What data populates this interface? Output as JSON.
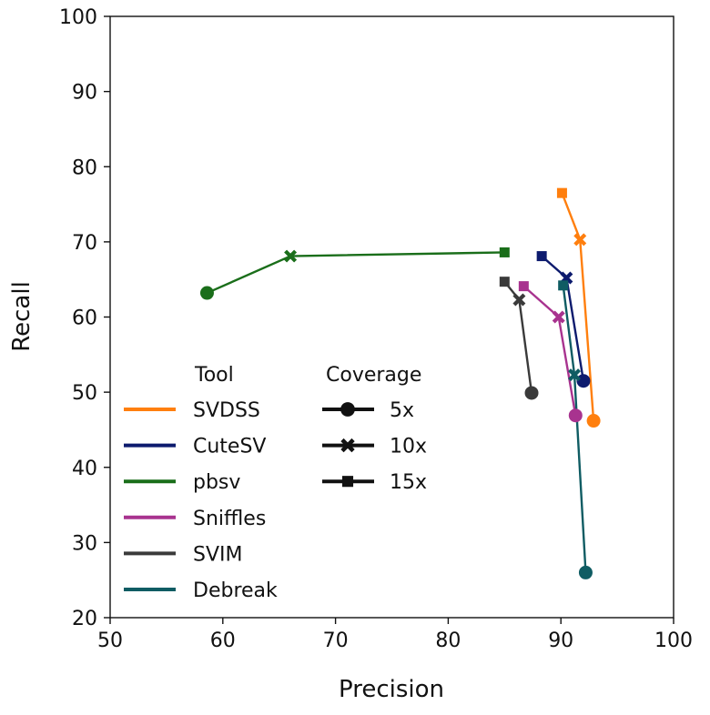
{
  "chart_data": {
    "type": "scatter",
    "title": "",
    "xlabel": "Precision",
    "ylabel": "Recall",
    "xlim": [
      50,
      100
    ],
    "ylim": [
      20,
      100
    ],
    "xticks": [
      "50",
      "60",
      "70",
      "80",
      "90",
      "100"
    ],
    "yticks": [
      "20",
      "30",
      "40",
      "50",
      "60",
      "70",
      "80",
      "90",
      "100"
    ],
    "legend": {
      "tool_title": "Tool",
      "coverage_title": "Coverage",
      "coverages": [
        {
          "label": "5x",
          "marker": "circle"
        },
        {
          "label": "10x",
          "marker": "x"
        },
        {
          "label": "15x",
          "marker": "square"
        }
      ]
    },
    "series": [
      {
        "name": "SVDSS",
        "color": "#ff7f0e",
        "points": [
          {
            "coverage": "5x",
            "x": 92.9,
            "y": 46.2
          },
          {
            "coverage": "10x",
            "x": 91.7,
            "y": 70.3
          },
          {
            "coverage": "15x",
            "x": 90.1,
            "y": 76.5
          }
        ]
      },
      {
        "name": "CuteSV",
        "color": "#0d1b6e",
        "points": [
          {
            "coverage": "5x",
            "x": 92.0,
            "y": 51.5
          },
          {
            "coverage": "10x",
            "x": 90.5,
            "y": 65.2
          },
          {
            "coverage": "15x",
            "x": 88.3,
            "y": 68.1
          }
        ]
      },
      {
        "name": "pbsv",
        "color": "#1a6e1a",
        "points": [
          {
            "coverage": "5x",
            "x": 58.6,
            "y": 63.2
          },
          {
            "coverage": "10x",
            "x": 66.0,
            "y": 68.1
          },
          {
            "coverage": "15x",
            "x": 85.0,
            "y": 68.6
          }
        ]
      },
      {
        "name": "Sniffles",
        "color": "#a8338f",
        "points": [
          {
            "coverage": "5x",
            "x": 91.3,
            "y": 46.9
          },
          {
            "coverage": "10x",
            "x": 89.8,
            "y": 60.0
          },
          {
            "coverage": "15x",
            "x": 86.7,
            "y": 64.1
          }
        ]
      },
      {
        "name": "SVIM",
        "color": "#3a3a3a",
        "points": [
          {
            "coverage": "5x",
            "x": 87.4,
            "y": 49.9
          },
          {
            "coverage": "10x",
            "x": 86.3,
            "y": 62.3
          },
          {
            "coverage": "15x",
            "x": 85.0,
            "y": 64.7
          }
        ]
      },
      {
        "name": "Debreak",
        "color": "#0f5c63",
        "points": [
          {
            "coverage": "5x",
            "x": 92.2,
            "y": 26.0
          },
          {
            "coverage": "10x",
            "x": 91.2,
            "y": 52.3
          },
          {
            "coverage": "15x",
            "x": 90.2,
            "y": 64.2
          }
        ]
      }
    ]
  }
}
